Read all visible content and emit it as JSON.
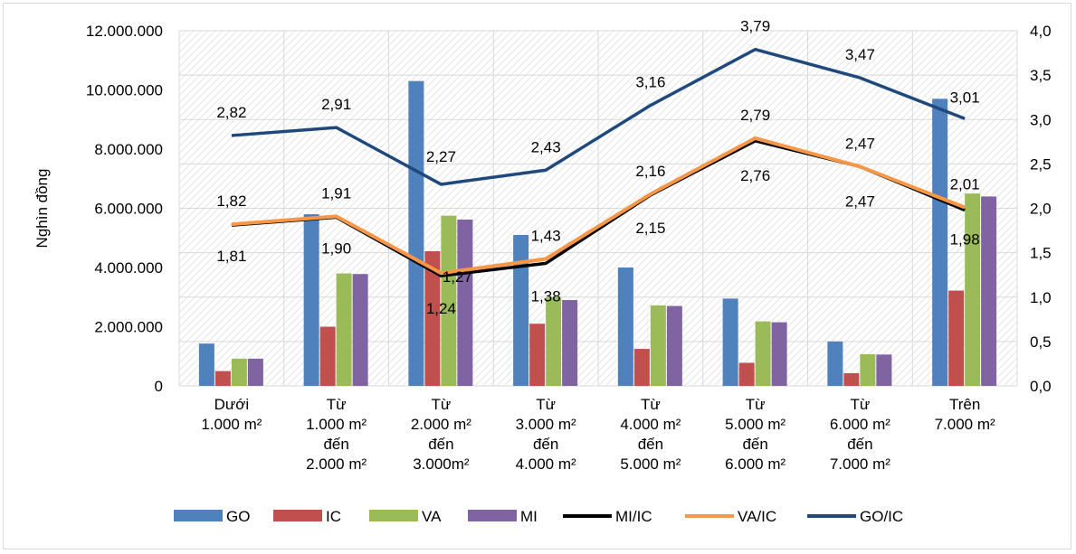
{
  "chart_data": {
    "type": "bar",
    "ylabel": "Nghìn đồng",
    "ylim": [
      0,
      12000000
    ],
    "y2lim": [
      0,
      4.0
    ],
    "y_ticks": [
      "0",
      "2.000.000",
      "4.000.000",
      "6.000.000",
      "8.000.000",
      "10.000.000",
      "12.000.000"
    ],
    "y2_ticks": [
      "0,0",
      "0,5",
      "1,0",
      "1,5",
      "2,0",
      "2,5",
      "3,0",
      "3,5",
      "4,0"
    ],
    "categories": [
      [
        "Dưới",
        "1.000 m²"
      ],
      [
        "Từ",
        "1.000 m²",
        "đến",
        "2.000 m²"
      ],
      [
        "Từ",
        "2.000 m²",
        "đến",
        "3.000m²"
      ],
      [
        "Từ",
        "3.000 m²",
        "đến",
        "4.000 m²"
      ],
      [
        "Từ",
        "4.000 m²",
        "đến",
        "5.000 m²"
      ],
      [
        "Từ",
        "5.000 m²",
        "đến",
        "6.000 m²"
      ],
      [
        "Từ",
        "6.000 m²",
        "đến",
        "7.000 m²"
      ],
      [
        "Trên",
        "7.000 m²"
      ]
    ],
    "bar_series": [
      {
        "name": "GO",
        "color": "#4f81bd",
        "values": [
          1430000,
          5800000,
          10300000,
          5100000,
          4000000,
          2950000,
          1500000,
          9700000
        ]
      },
      {
        "name": "IC",
        "color": "#c0504d",
        "values": [
          500000,
          2000000,
          4550000,
          2100000,
          1250000,
          780000,
          430000,
          3220000
        ]
      },
      {
        "name": "VA",
        "color": "#9bbb59",
        "values": [
          920000,
          3800000,
          5750000,
          3000000,
          2720000,
          2180000,
          1070000,
          6500000
        ]
      },
      {
        "name": "MI",
        "color": "#8064a2",
        "values": [
          920000,
          3780000,
          5620000,
          2900000,
          2700000,
          2150000,
          1060000,
          6400000
        ]
      }
    ],
    "line_series": [
      {
        "name": "MI/IC",
        "color": "#000000",
        "axis": "right",
        "values": [
          1.81,
          1.9,
          1.24,
          1.38,
          2.15,
          2.76,
          2.47,
          1.98
        ],
        "labels": [
          "1,81",
          "1,90",
          "1,24",
          "1,38",
          "2,15",
          "2,76",
          "2,47",
          "1,98"
        ]
      },
      {
        "name": "VA/IC",
        "color": "#f79646",
        "axis": "right",
        "values": [
          1.82,
          1.91,
          1.27,
          1.43,
          2.16,
          2.79,
          2.47,
          2.01
        ],
        "labels": [
          "1,82",
          "1,91",
          "1,27",
          "1,43",
          "2,16",
          "2,79",
          "2,47",
          "2,01"
        ]
      },
      {
        "name": "GO/IC",
        "color": "#1f497d",
        "axis": "right",
        "values": [
          2.82,
          2.91,
          2.27,
          2.43,
          3.16,
          3.79,
          3.47,
          3.01
        ],
        "labels": [
          "2,82",
          "2,91",
          "2,27",
          "2,43",
          "3,16",
          "3,79",
          "3,47",
          "3,01"
        ]
      }
    ],
    "legend_position": "bottom",
    "grid": true
  }
}
